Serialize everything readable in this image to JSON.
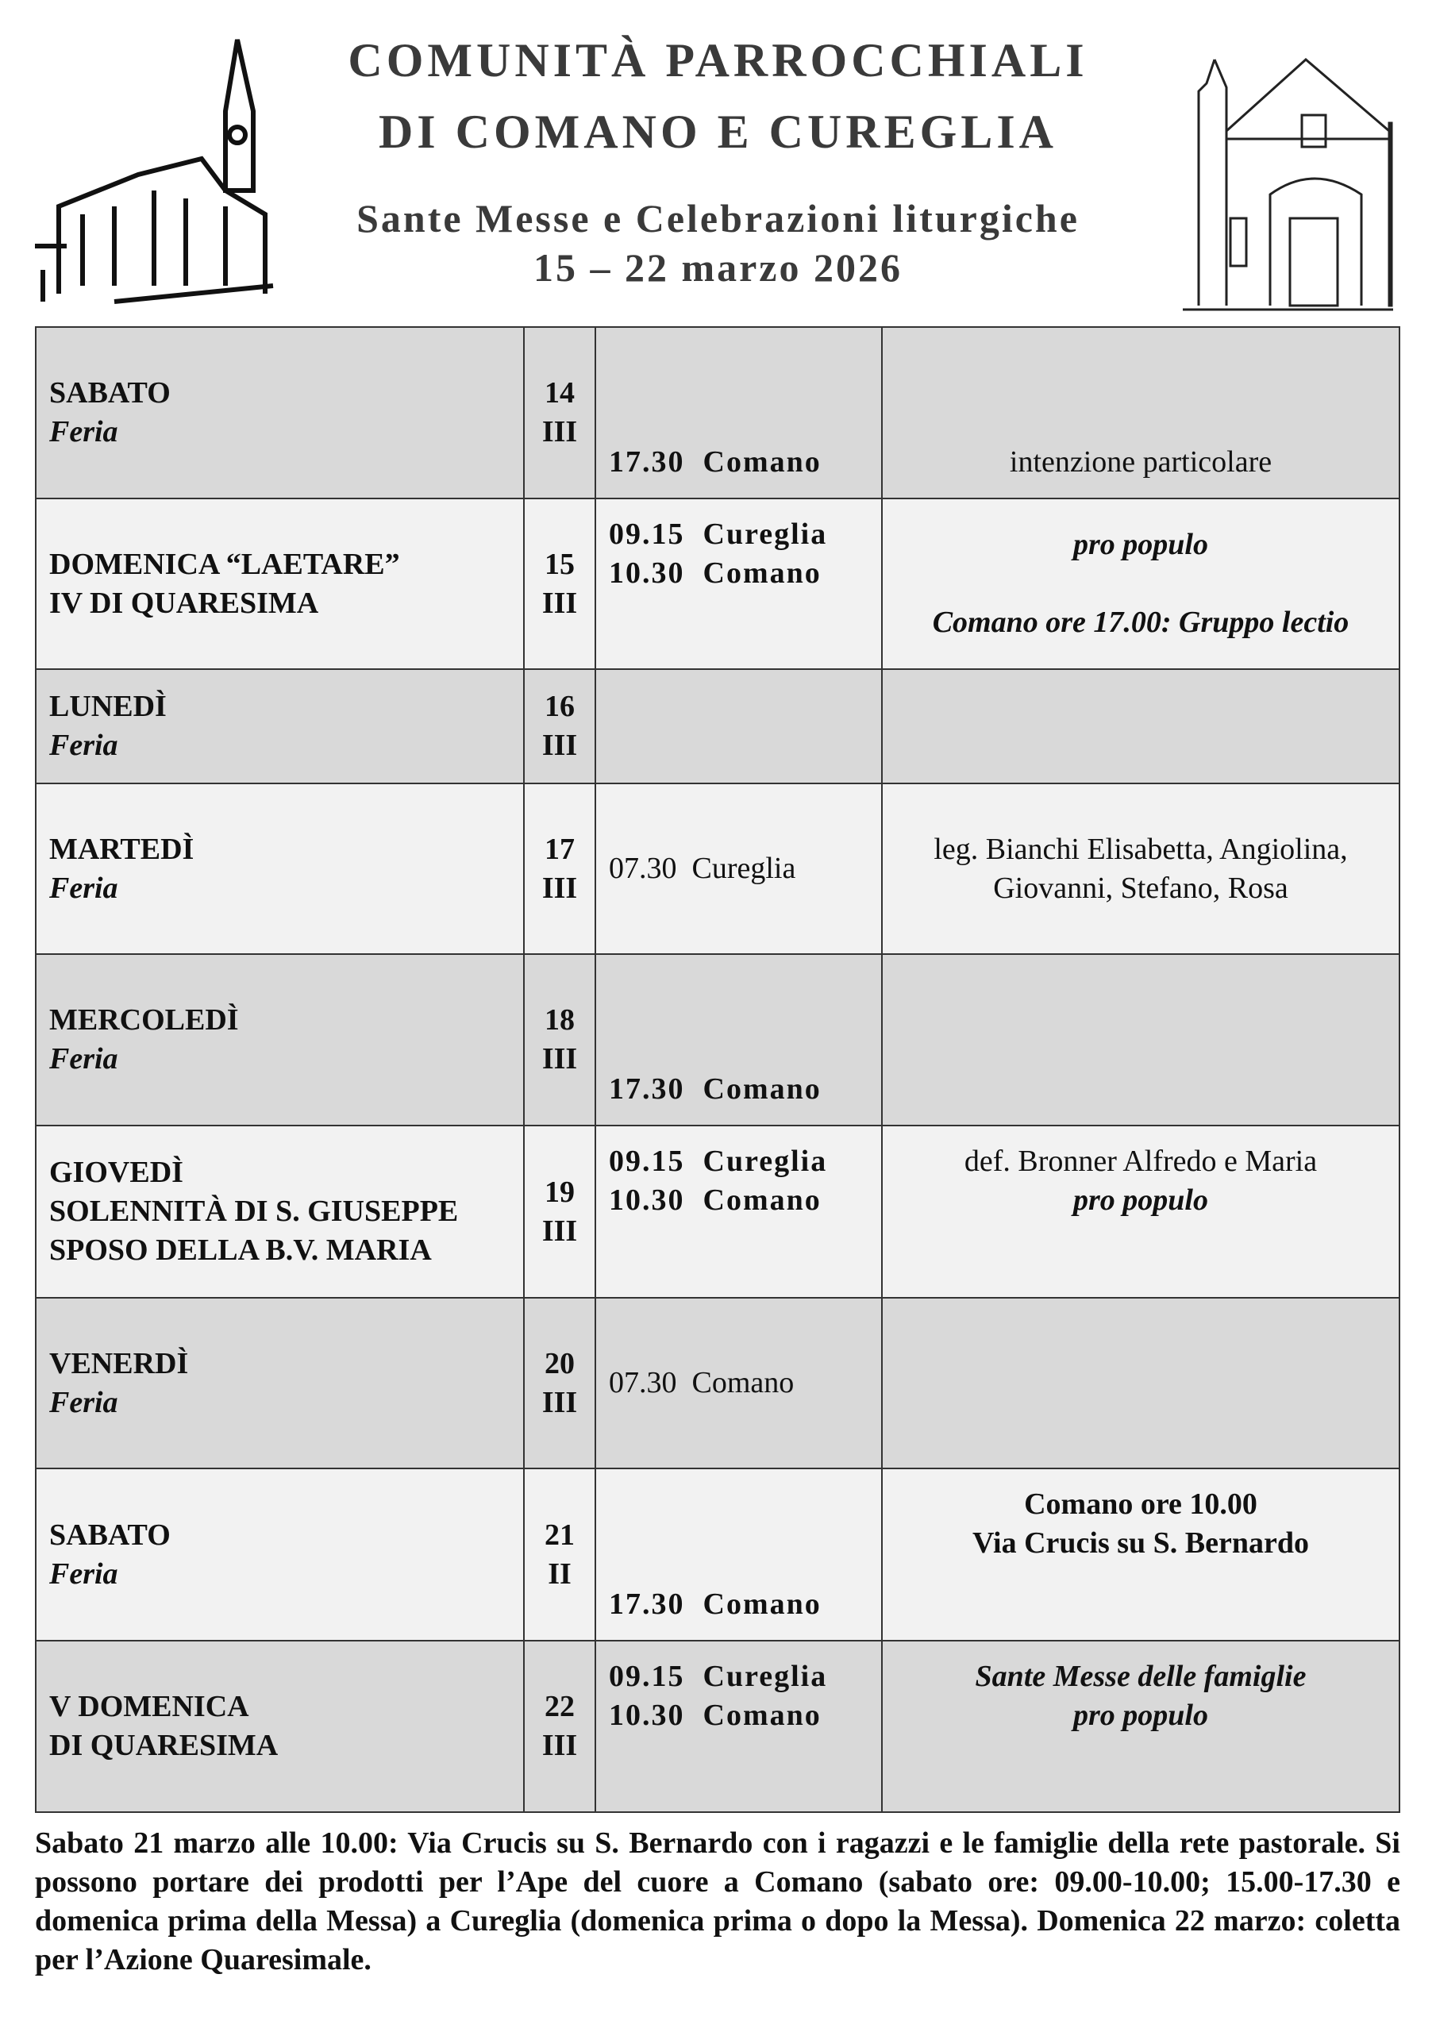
{
  "header": {
    "title_line1": "COMUNITÀ PARROCCHIALI",
    "title_line2": "DI COMANO E CUREGLIA",
    "subtitle": "Sante Messe e Celebrazioni liturgiche",
    "dates": "15 – 22 marzo 2026"
  },
  "rows": [
    {
      "day": "SABATO",
      "sub": "Feria",
      "num": "14",
      "week": "III",
      "times": [
        "17.30  Comano"
      ],
      "notes": [
        "intenzione particolare"
      ]
    },
    {
      "day": "DOMENICA “LAETARE”",
      "sub": "IV DI QUARESIMA",
      "num": "15",
      "week": "III",
      "times": [
        "09.15  Cureglia",
        "10.30  Comano"
      ],
      "notes": [
        "pro populo",
        "Comano ore 17.00: Gruppo lectio"
      ]
    },
    {
      "day": "LUNEDÌ",
      "sub": "Feria",
      "num": "16",
      "week": "III",
      "times": [],
      "notes": []
    },
    {
      "day": "MARTEDÌ",
      "sub": "Feria",
      "num": "17",
      "week": "III",
      "times": [
        "07.30  Cureglia"
      ],
      "notes": [
        "leg. Bianchi Elisabetta, Angiolina,",
        "Giovanni, Stefano, Rosa"
      ]
    },
    {
      "day": "MERCOLEDÌ",
      "sub": "Feria",
      "num": "18",
      "week": "III",
      "times": [
        "17.30  Comano"
      ],
      "notes": []
    },
    {
      "day": "GIOVEDÌ",
      "sub": "SOLENNITÀ DI S. GIUSEPPE",
      "sub2": "SPOSO DELLA B.V. MARIA",
      "num": "19",
      "week": "III",
      "times": [
        "09.15  Cureglia",
        "10.30  Comano"
      ],
      "notes": [
        "def. Bronner Alfredo e Maria",
        "pro populo"
      ]
    },
    {
      "day": "VENERDÌ",
      "sub": "Feria",
      "num": "20",
      "week": "III",
      "times": [
        "07.30  Comano"
      ],
      "notes": []
    },
    {
      "day": "SABATO",
      "sub": "Feria",
      "num": "21",
      "week": "II",
      "times": [
        "17.30  Comano"
      ],
      "notes": [
        "Comano ore 10.00",
        "Via Crucis su S. Bernardo"
      ]
    },
    {
      "day": "V DOMENICA",
      "sub": "DI QUARESIMA",
      "num": "22",
      "week": "III",
      "times": [
        "09.15  Cureglia",
        "10.30  Comano"
      ],
      "notes": [
        "Sante Messe delle famiglie",
        "pro populo"
      ]
    }
  ],
  "footer": "Sabato 21 marzo alle 10.00: Via Crucis su S. Bernardo con i ragazzi e le famiglie della rete pastorale. Si possono portare dei prodotti per l’Ape del cuore a Comano (sabato ore: 09.00-10.00; 15.00-17.30 e domenica prima della Messa) a Cureglia (domenica prima o dopo la Messa). Domenica 22 marzo: coletta per l’Azione Quaresimale."
}
